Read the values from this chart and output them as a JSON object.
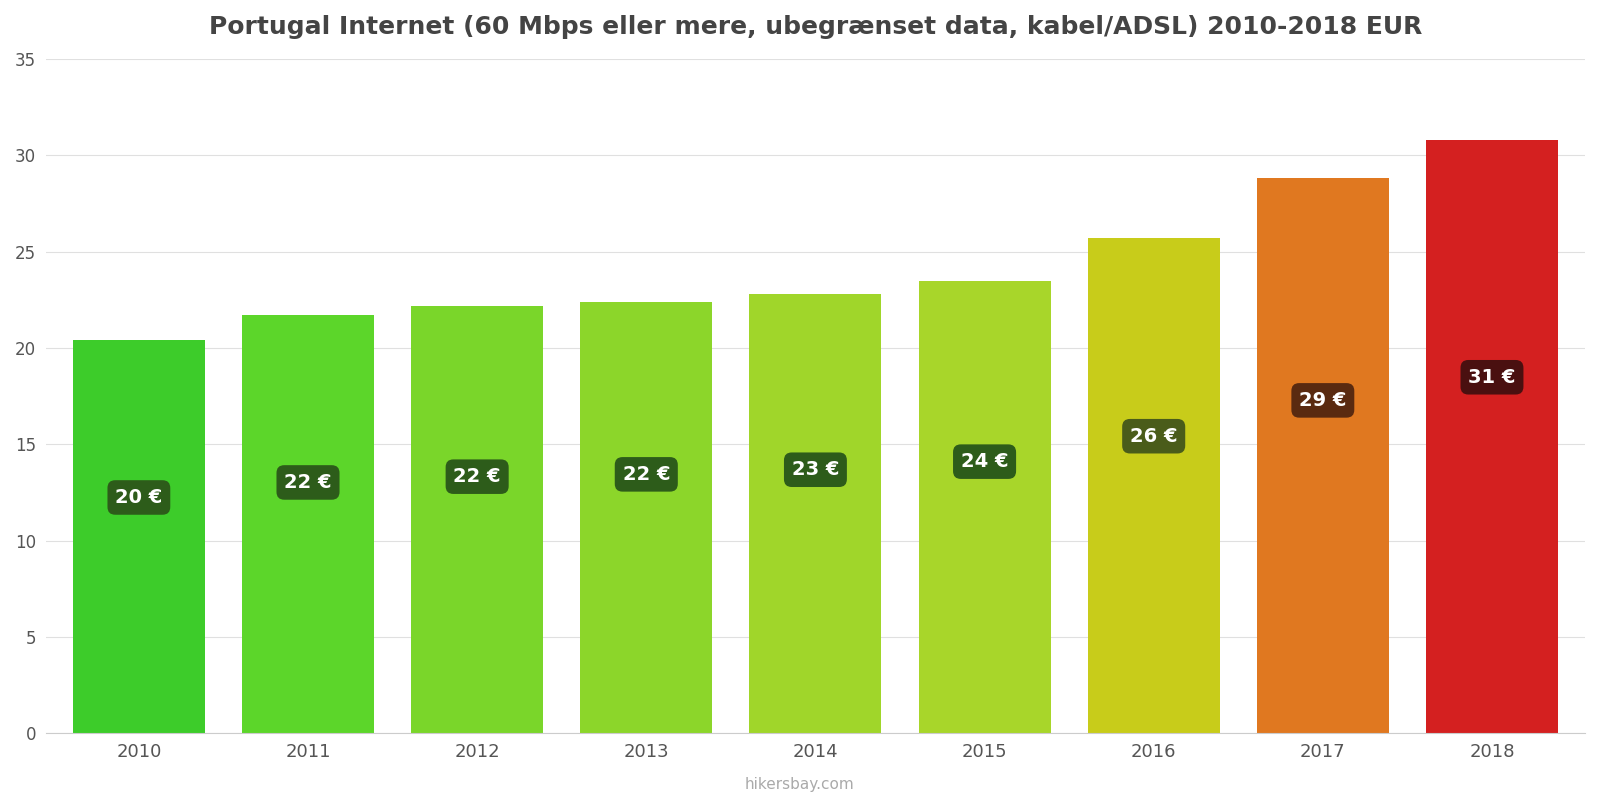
{
  "years": [
    2010,
    2011,
    2012,
    2013,
    2014,
    2015,
    2016,
    2017,
    2018
  ],
  "values": [
    20.4,
    21.7,
    22.2,
    22.4,
    22.8,
    23.5,
    25.7,
    28.8,
    30.8
  ],
  "labels": [
    "20 €",
    "22 €",
    "22 €",
    "22 €",
    "23 €",
    "24 €",
    "26 €",
    "29 €",
    "31 €"
  ],
  "bar_colors": [
    "#3dcc2a",
    "#5cd62a",
    "#7ad62a",
    "#8cd62a",
    "#a0d62a",
    "#a8d62a",
    "#c8cc1a",
    "#e07820",
    "#d42020"
  ],
  "label_box_colors": [
    "#2d5c1a",
    "#2d5c1a",
    "#2d5c1a",
    "#2d5c1a",
    "#2d5c1a",
    "#2d5c1a",
    "#4a5c1a",
    "#5a2a10",
    "#4a1010"
  ],
  "title": "Portugal Internet (60 Mbps eller mere, ubegrænset data, kabel/ADSL) 2010-2018 EUR",
  "ylim": [
    0,
    35
  ],
  "yticks": [
    0,
    5,
    10,
    15,
    20,
    25,
    30,
    35
  ],
  "background_color": "#ffffff",
  "watermark": "hikersbay.com",
  "title_fontsize": 18,
  "label_fontsize": 14,
  "bar_width": 0.78
}
